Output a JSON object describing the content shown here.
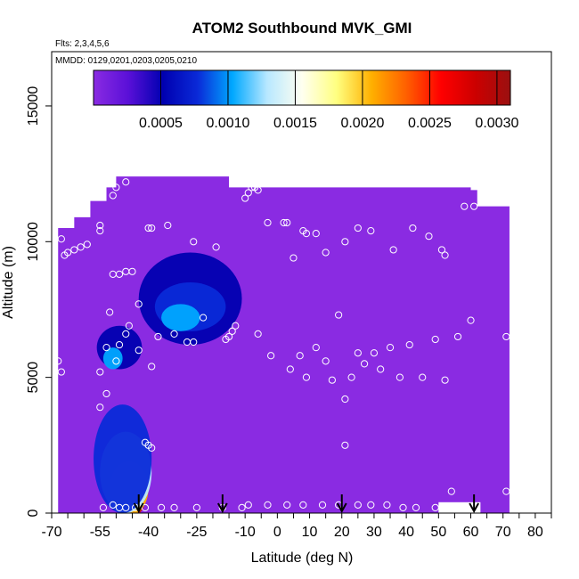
{
  "chart_data": {
    "type": "heatmap",
    "title": "ATOM2 Southbound MVK_GMI",
    "subtitle_flights": "Flts: 2,3,4,5,6",
    "subtitle_dates": "MMDD: 0129,0201,0203,0205,0210",
    "xlabel": "Latitude (deg N)",
    "ylabel": "Altitude (m)",
    "xlim": [
      -70,
      85
    ],
    "ylim": [
      0,
      17000
    ],
    "x_ticks": [
      -70,
      -55,
      -40,
      -25,
      -10,
      0,
      10,
      20,
      30,
      40,
      50,
      60,
      70,
      80
    ],
    "x_tick_labels": [
      "-70",
      "-55",
      "-40",
      "-25",
      "-10",
      "0",
      "10",
      "20",
      "30",
      "40",
      "50",
      "60",
      "70",
      "80"
    ],
    "y_ticks": [
      0,
      5000,
      10000,
      15000
    ],
    "y_tick_labels": [
      "0",
      "5000",
      "10000",
      "15000"
    ],
    "colorbar": {
      "range": [
        0,
        0.0031
      ],
      "ticks": [
        0.0005,
        0.001,
        0.0015,
        0.002,
        0.0025,
        0.003
      ],
      "tick_labels": [
        "0.0005",
        "0.0010",
        "0.0015",
        "0.0020",
        "0.0025",
        "0.0030"
      ],
      "colors": [
        "#8a2be2",
        "#5a10d8",
        "#0000b0",
        "#0a2ad8",
        "#00a8ff",
        "#b8e8ff",
        "#fffff0",
        "#ffff80",
        "#ffb000",
        "#ff6000",
        "#ff0000",
        "#cc0000",
        "#9a1010"
      ]
    },
    "background_field_value": 0.0001,
    "field_envelope": [
      {
        "x": -68,
        "top": 10500
      },
      {
        "x": -63,
        "top": 10900
      },
      {
        "x": -58,
        "top": 11500
      },
      {
        "x": -53,
        "top": 12000
      },
      {
        "x": -50,
        "top": 12400
      },
      {
        "x": -30,
        "top": 12400
      },
      {
        "x": -15,
        "top": 12000
      },
      {
        "x": 60,
        "top": 11900
      },
      {
        "x": 62,
        "top": 11300
      },
      {
        "x": 72,
        "top": 11300
      }
    ],
    "field_x_range": [
      -68,
      72
    ],
    "no_data_box": {
      "x": [
        50,
        63
      ],
      "y": [
        0,
        400
      ]
    },
    "plumes": [
      {
        "name": "surface-plume-core",
        "cx": -45,
        "cy": 500,
        "rx": 4,
        "ry": 600,
        "value": 0.0029
      },
      {
        "name": "surface-plume-warm",
        "cx": -46,
        "cy": 900,
        "rx": 6,
        "ry": 1000,
        "value": 0.002
      },
      {
        "name": "surface-plume-light",
        "cx": -47,
        "cy": 1500,
        "rx": 8,
        "ry": 1500,
        "value": 0.0013
      },
      {
        "name": "surface-plume-blue",
        "cx": -48,
        "cy": 2000,
        "rx": 9,
        "ry": 2000,
        "value": 0.0007
      },
      {
        "name": "upper-layer-outer",
        "cx": -27,
        "cy": 7900,
        "rx": 16,
        "ry": 1700,
        "value": 0.0004
      },
      {
        "name": "upper-layer-inner",
        "cx": -27,
        "cy": 7600,
        "rx": 11,
        "ry": 900,
        "value": 0.0007
      },
      {
        "name": "upper-layer-core",
        "cx": -30,
        "cy": 7200,
        "rx": 6,
        "ry": 500,
        "value": 0.001
      },
      {
        "name": "mid-layer",
        "cx": -49,
        "cy": 6100,
        "rx": 7,
        "ry": 800,
        "value": 0.0006
      },
      {
        "name": "mid-layer-core",
        "cx": -51,
        "cy": 5700,
        "rx": 3,
        "ry": 400,
        "value": 0.001
      }
    ],
    "observations": [
      [
        -66,
        9500
      ],
      [
        -65,
        9600
      ],
      [
        -63,
        9700
      ],
      [
        -61,
        9800
      ],
      [
        -59,
        9900
      ],
      [
        -67,
        10100
      ],
      [
        -55,
        10600
      ],
      [
        -55,
        10400
      ],
      [
        -51,
        11700
      ],
      [
        -50,
        12000
      ],
      [
        -47,
        12200
      ],
      [
        -40,
        10500
      ],
      [
        -39,
        10500
      ],
      [
        -34,
        10600
      ],
      [
        -26,
        10000
      ],
      [
        -19,
        9800
      ],
      [
        -10,
        11600
      ],
      [
        -9,
        11800
      ],
      [
        -8,
        12000
      ],
      [
        -7,
        12000
      ],
      [
        -6,
        11900
      ],
      [
        -3,
        10700
      ],
      [
        2,
        10700
      ],
      [
        3,
        10700
      ],
      [
        5,
        9400
      ],
      [
        8,
        10400
      ],
      [
        9,
        10300
      ],
      [
        12,
        10300
      ],
      [
        15,
        9600
      ],
      [
        21,
        10000
      ],
      [
        25,
        10500
      ],
      [
        29,
        10400
      ],
      [
        36,
        9700
      ],
      [
        42,
        10500
      ],
      [
        47,
        10200
      ],
      [
        51,
        9700
      ],
      [
        52,
        9500
      ],
      [
        58,
        11300
      ],
      [
        61,
        11300
      ],
      [
        -51,
        8800
      ],
      [
        -49,
        8800
      ],
      [
        -47,
        8900
      ],
      [
        -45,
        8900
      ],
      [
        -43,
        7700
      ],
      [
        -52,
        7400
      ],
      [
        -46,
        6900
      ],
      [
        -53,
        6100
      ],
      [
        -49,
        6200
      ],
      [
        -47,
        6600
      ],
      [
        -43,
        6000
      ],
      [
        -39,
        5400
      ],
      [
        -37,
        6500
      ],
      [
        -32,
        6600
      ],
      [
        -28,
        6300
      ],
      [
        -26,
        6300
      ],
      [
        -23,
        7200
      ],
      [
        -16,
        6400
      ],
      [
        -15,
        6500
      ],
      [
        -14,
        6700
      ],
      [
        -13,
        6900
      ],
      [
        -6,
        6600
      ],
      [
        -2,
        5800
      ],
      [
        4,
        5300
      ],
      [
        7,
        5800
      ],
      [
        9,
        5000
      ],
      [
        12,
        6100
      ],
      [
        15,
        5600
      ],
      [
        17,
        4900
      ],
      [
        19,
        7300
      ],
      [
        21,
        4200
      ],
      [
        23,
        5000
      ],
      [
        25,
        5900
      ],
      [
        27,
        5500
      ],
      [
        30,
        5900
      ],
      [
        32,
        5300
      ],
      [
        35,
        6100
      ],
      [
        38,
        5000
      ],
      [
        41,
        6200
      ],
      [
        45,
        5000
      ],
      [
        49,
        6400
      ],
      [
        52,
        4900
      ],
      [
        56,
        6500
      ],
      [
        60,
        7100
      ],
      [
        -68,
        5600
      ],
      [
        -67,
        5200
      ],
      [
        -55,
        5200
      ],
      [
        -53,
        4400
      ],
      [
        -55,
        3900
      ],
      [
        -50,
        5600
      ],
      [
        -41,
        2600
      ],
      [
        -40,
        2500
      ],
      [
        -39,
        2400
      ],
      [
        21,
        2500
      ],
      [
        71,
        6500
      ],
      [
        -54,
        200
      ],
      [
        -51,
        300
      ],
      [
        -49,
        200
      ],
      [
        -47,
        200
      ],
      [
        -44,
        200
      ],
      [
        -41,
        200
      ],
      [
        -36,
        200
      ],
      [
        -32,
        200
      ],
      [
        -25,
        200
      ],
      [
        -17,
        200
      ],
      [
        -11,
        200
      ],
      [
        -9,
        300
      ],
      [
        -3,
        300
      ],
      [
        3,
        300
      ],
      [
        8,
        300
      ],
      [
        14,
        300
      ],
      [
        19,
        300
      ],
      [
        25,
        300
      ],
      [
        29,
        300
      ],
      [
        34,
        300
      ],
      [
        39,
        200
      ],
      [
        43,
        200
      ],
      [
        49,
        200
      ],
      [
        54,
        800
      ],
      [
        71,
        800
      ]
    ],
    "flight_markers_x": [
      -43,
      -17,
      20,
      61
    ]
  }
}
